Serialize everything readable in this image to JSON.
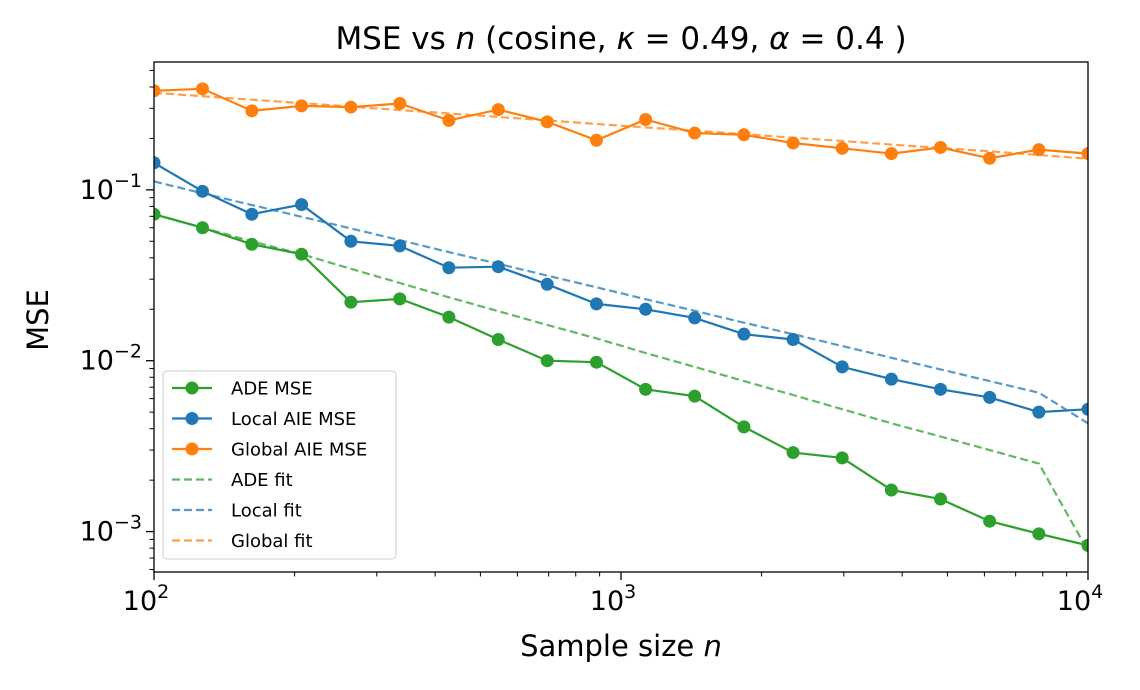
{
  "chart_data": {
    "type": "line",
    "title_parts": {
      "prefix": "MSE vs ",
      "n": "n",
      "mid1": " (cosine, ",
      "kappa_sym": "κ",
      "kappa_eq": " = 0.49, ",
      "alpha_sym": "α",
      "alpha_eq": " = 0.4 )"
    },
    "xlabel_parts": {
      "text": "Sample size ",
      "var": "n"
    },
    "ylabel": "MSE",
    "xscale": "log",
    "yscale": "log",
    "xlim": [
      100,
      10000
    ],
    "ylim": [
      0.00058,
      0.56
    ],
    "x_ticks": [
      {
        "value": 100,
        "base": "10",
        "exp": "2"
      },
      {
        "value": 1000,
        "base": "10",
        "exp": "3"
      },
      {
        "value": 10000,
        "base": "10",
        "exp": "4"
      }
    ],
    "y_ticks": [
      {
        "value": 0.001,
        "base": "10",
        "exp": "−3"
      },
      {
        "value": 0.01,
        "base": "10",
        "exp": "−2"
      },
      {
        "value": 0.1,
        "base": "10",
        "exp": "−1"
      }
    ],
    "x": [
      100,
      127,
      162,
      207,
      264,
      336,
      428,
      546,
      695,
      886,
      1129,
      1438,
      1833,
      2336,
      2976,
      3793,
      4833,
      6158,
      7848,
      10000
    ],
    "series": [
      {
        "name": "ADE MSE",
        "color": "#2ca02c",
        "style": "solid-marker",
        "values": [
          0.072,
          0.06,
          0.048,
          0.042,
          0.022,
          0.023,
          0.018,
          0.0133,
          0.01,
          0.0098,
          0.0068,
          0.0062,
          0.0041,
          0.0029,
          0.0027,
          0.00175,
          0.00155,
          0.00115,
          0.00097,
          0.00083
        ]
      },
      {
        "name": "Local AIE MSE",
        "color": "#1f77b4",
        "style": "solid-marker",
        "values": [
          0.144,
          0.098,
          0.072,
          0.082,
          0.05,
          0.047,
          0.035,
          0.0355,
          0.028,
          0.0215,
          0.02,
          0.0178,
          0.0143,
          0.0133,
          0.0092,
          0.0078,
          0.0068,
          0.0061,
          0.005,
          0.0052
        ]
      },
      {
        "name": "Global AIE MSE",
        "color": "#ff7f0e",
        "style": "solid-marker",
        "values": [
          0.38,
          0.39,
          0.29,
          0.31,
          0.305,
          0.32,
          0.255,
          0.295,
          0.25,
          0.195,
          0.258,
          0.215,
          0.21,
          0.188,
          0.175,
          0.163,
          0.177,
          0.153,
          0.172,
          0.163
        ]
      },
      {
        "name": "ADE fit",
        "color": "#2ca02c",
        "style": "dashed",
        "values": [
          0.072,
          0.06,
          0.05,
          0.042,
          0.0345,
          0.0285,
          0.0235,
          0.0195,
          0.0162,
          0.0135,
          0.0111,
          0.0092,
          0.0076,
          0.0063,
          0.0052,
          0.0043,
          0.0036,
          0.003,
          0.0025,
          0.00077
        ]
      },
      {
        "name": "Local fit",
        "color": "#1f77b4",
        "style": "dashed",
        "values": [
          0.112,
          0.0955,
          0.0815,
          0.0695,
          0.0595,
          0.0507,
          0.0432,
          0.0369,
          0.0315,
          0.0269,
          0.0229,
          0.0196,
          0.0167,
          0.0143,
          0.0122,
          0.0104,
          0.0089,
          0.0076,
          0.0065,
          0.0043
        ]
      },
      {
        "name": "Global fit",
        "color": "#ff7f0e",
        "style": "dashed",
        "values": [
          0.37,
          0.353,
          0.337,
          0.322,
          0.307,
          0.293,
          0.28,
          0.267,
          0.255,
          0.243,
          0.232,
          0.222,
          0.212,
          0.202,
          0.193,
          0.184,
          0.176,
          0.168,
          0.16,
          0.152
        ]
      }
    ],
    "legend": [
      "ADE MSE",
      "Local AIE MSE",
      "Global AIE MSE",
      "ADE fit",
      "Local fit",
      "Global fit"
    ],
    "legend_position": "lower-left",
    "grid": false
  }
}
